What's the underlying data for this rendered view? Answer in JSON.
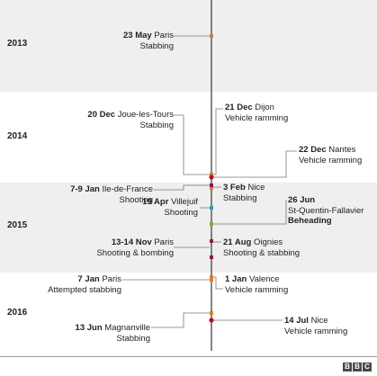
{
  "years": [
    {
      "label": "2013"
    },
    {
      "label": "2014"
    },
    {
      "label": "2015"
    },
    {
      "label": "2016"
    }
  ],
  "events": [
    {
      "date": "23 May",
      "place": "Paris",
      "type": "Stabbing",
      "color": "#e07b2a"
    },
    {
      "date": "20 Dec",
      "place": "Joue-les-Tours",
      "type": "Stabbing",
      "color": "#e07b2a"
    },
    {
      "date": "21 Dec",
      "place": "Dijon",
      "type": "Vehicle ramming",
      "color": "#e07b2a"
    },
    {
      "date": "22 Dec",
      "place": "Nantes",
      "type": "Vehicle ramming",
      "color": "#b5121b"
    },
    {
      "date": "7-9 Jan",
      "place": "Ile-de-France",
      "type": "Shooting",
      "color": "#8c1d40"
    },
    {
      "date": "3 Feb",
      "place": "Nice",
      "type": "Stabbing",
      "color": "#e07b2a"
    },
    {
      "date": "19 Apr",
      "place": "Villejuif",
      "type": "Shooting",
      "color": "#2a9fb5"
    },
    {
      "date": "26 Jun",
      "place": "St-Quentin-Fallavier",
      "type": "Beheading",
      "color": "#7ab51d"
    },
    {
      "date": "21 Aug",
      "place": "Oignies",
      "type": "Shooting & stabbing",
      "color": "#8c1d40"
    },
    {
      "date": "13-14 Nov",
      "place": "Paris",
      "type": "Shooting & bombing",
      "color": "#8c1d40"
    },
    {
      "date": "7 Jan",
      "place": "Paris",
      "type": "Attempted stabbing",
      "color": "#e07b2a"
    },
    {
      "date": "1 Jan",
      "place": "Valence",
      "type": "Vehicle ramming",
      "color": "#e07b2a"
    },
    {
      "date": "13 Jun",
      "place": "Magnanville",
      "type": "Stabbing",
      "color": "#e07b2a"
    },
    {
      "date": "14 Jul",
      "place": "Nice",
      "type": "Vehicle ramming",
      "color": "#b5121b"
    }
  ],
  "source": {
    "logo": "BBC"
  }
}
